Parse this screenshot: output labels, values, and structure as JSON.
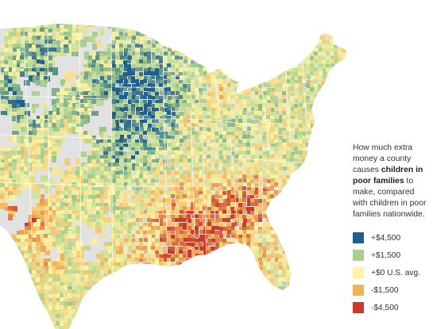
{
  "caption": {
    "pre": "How much extra money a county causes ",
    "bold": "children in poor families",
    "post": " to make, compared with children in poor families nationwide."
  },
  "legend": {
    "items": [
      {
        "label": "+$4,500",
        "color": "#1f5f8f"
      },
      {
        "label": "+$1,500",
        "color": "#a9cf8e"
      },
      {
        "label": "+$0 U.S. avg.",
        "color": "#fbf4a7"
      },
      {
        "label": "-$1,500",
        "color": "#f1b25c"
      },
      {
        "label": "-$4,500",
        "color": "#c83a2d"
      }
    ]
  },
  "map": {
    "no_data_color": "#e2e2e2",
    "state_border_color": "#ffffff"
  }
}
